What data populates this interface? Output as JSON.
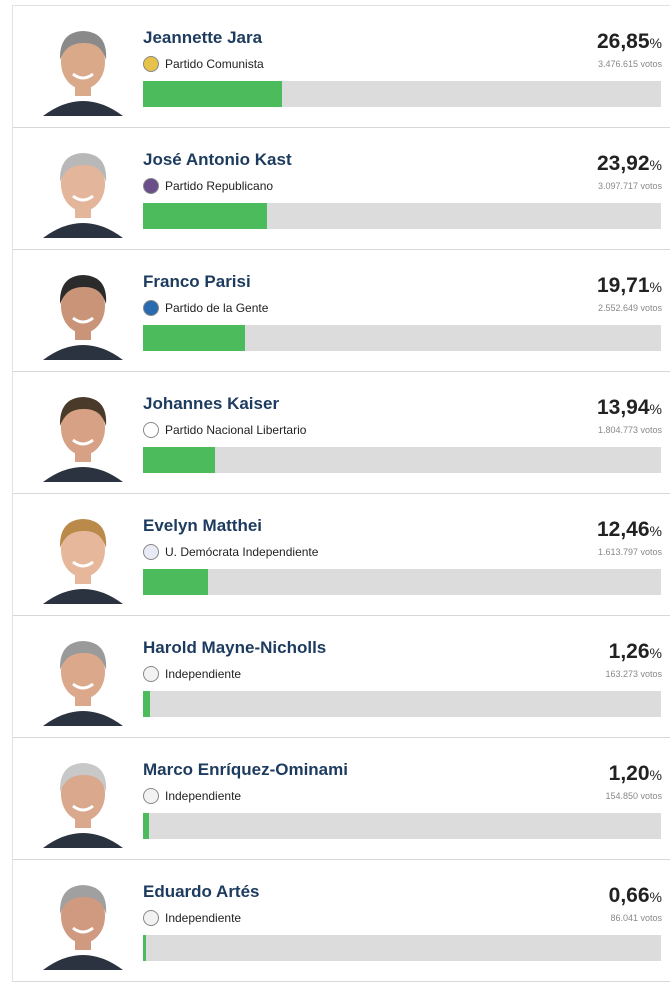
{
  "candidates": [
    {
      "name": "Jeannette Jara",
      "party": "Partido Comunista",
      "percent": 26.85,
      "percent_label": "26,85",
      "percent_unit": "%",
      "votes": "3.476.615 votos"
    },
    {
      "name": "José Antonio Kast",
      "party": "Partido Republicano",
      "percent": 23.92,
      "percent_label": "23,92",
      "percent_unit": "%",
      "votes": "3.097.717 votos"
    },
    {
      "name": "Franco Parisi",
      "party": "Partido de la Gente",
      "percent": 19.71,
      "percent_label": "19,71",
      "percent_unit": "%",
      "votes": "2.552.649 votos"
    },
    {
      "name": "Johannes Kaiser",
      "party": "Partido Nacional Libertario",
      "percent": 13.94,
      "percent_label": "13,94",
      "percent_unit": "%",
      "votes": "1.804.773 votos"
    },
    {
      "name": "Evelyn Matthei",
      "party": "U. Demócrata Independiente",
      "percent": 12.46,
      "percent_label": "12,46",
      "percent_unit": "%",
      "votes": "1.613.797 votos"
    },
    {
      "name": "Harold Mayne-Nicholls",
      "party": "Independiente",
      "percent": 1.26,
      "percent_label": "1,26",
      "percent_unit": "%",
      "votes": "163.273 votos"
    },
    {
      "name": "Marco Enríquez-Ominami",
      "party": "Independiente",
      "percent": 1.2,
      "percent_label": "1,20",
      "percent_unit": "%",
      "votes": "154.850 votos"
    },
    {
      "name": "Eduardo Artés",
      "party": "Independiente",
      "percent": 0.66,
      "percent_label": "0,66",
      "percent_unit": "%",
      "votes": "86.041 votos"
    }
  ]
}
